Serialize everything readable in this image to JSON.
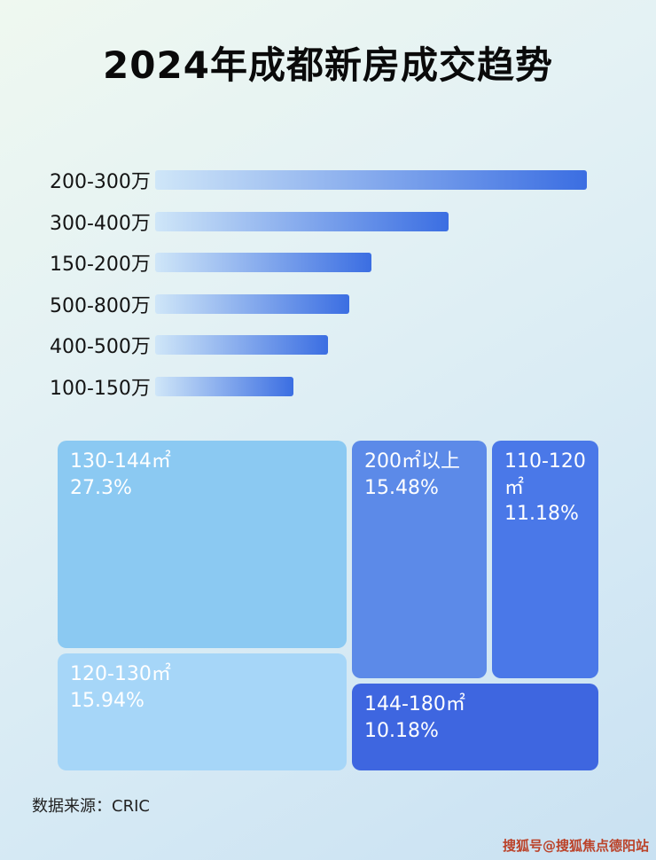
{
  "header": {
    "title": "2024年成都新房成交趋势"
  },
  "footer": {
    "source": "数据来源：CRIC",
    "watermark": "搜狐号@搜狐焦点德阳站"
  },
  "colors": {
    "bar_gradient_from": "#cfe6f8",
    "bar_gradient_to": "#3b6ee2",
    "title_color": "#0a0a0a",
    "treemap_text": "#ffffff"
  },
  "chart_data": [
    {
      "type": "bar",
      "title": "2024年成都新房成交趋势",
      "orientation": "horizontal",
      "categories": [
        "200-300万",
        "300-400万",
        "150-200万",
        "500-800万",
        "400-500万",
        "100-150万"
      ],
      "values": [
        100,
        68,
        50,
        45,
        40,
        32
      ],
      "value_note": "relative bar lengths as % of longest bar; no numeric axis shown in image",
      "xlabel": "",
      "ylabel": "",
      "grid": false,
      "legend": false
    },
    {
      "type": "treemap",
      "items": [
        {
          "label": "130-144㎡",
          "value": 27.3,
          "display": "27.3%",
          "color": "#8bc9f2"
        },
        {
          "label": "200㎡以上",
          "value": 15.48,
          "display": "15.48%",
          "color": "#5c8ae8"
        },
        {
          "label": "110-120㎡",
          "value": 11.18,
          "display": "11.18%",
          "color": "#4a78e8"
        },
        {
          "label": "120-130㎡",
          "value": 15.94,
          "display": "15.94%",
          "color": "#a6d6f8"
        },
        {
          "label": "144-180㎡",
          "value": 10.18,
          "display": "10.18%",
          "color": "#3e66e0"
        }
      ]
    }
  ]
}
